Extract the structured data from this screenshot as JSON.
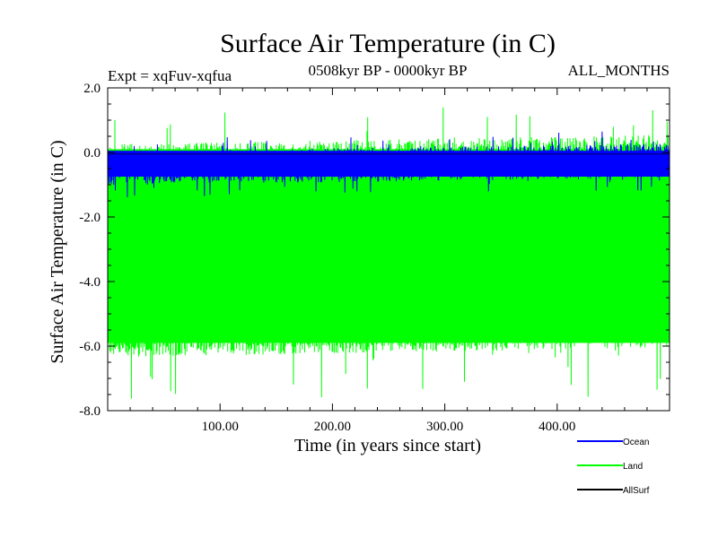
{
  "chart_data": {
    "type": "line",
    "title": "Surface Air Temperature (in C)",
    "subtitle": "0508kyr BP - 0000kyr BP",
    "expt_label": "Expt = xqFuv-xqfua",
    "months_label": "ALL_MONTHS",
    "xlabel": "Time (in years since start)",
    "ylabel": "Surface Air Temperature (in C)",
    "xlim": [
      0,
      500
    ],
    "ylim": [
      -8.0,
      2.0
    ],
    "xticks": [
      100,
      200,
      300,
      400
    ],
    "xtick_labels": [
      "100.00",
      "200.00",
      "300.00",
      "400.00"
    ],
    "yticks": [
      2.0,
      0.0,
      -2.0,
      -4.0,
      -6.0,
      -8.0
    ],
    "ytick_labels": [
      "2.0",
      "0.0",
      "-2.0",
      "-4.0",
      "-6.0",
      "-8.0"
    ],
    "grid": false,
    "legend_position": "bottom-right",
    "series": [
      {
        "name": "Land",
        "color": "#00ff00",
        "mean": -3.2,
        "low_envelope": -6.2,
        "high_envelope": 0.4,
        "min": -7.7,
        "max": 1.4
      },
      {
        "name": "Ocean",
        "color": "#0000ff",
        "mean": -0.35,
        "low_envelope": -0.9,
        "high_envelope": 0.15,
        "min": -1.3,
        "max": 0.55
      },
      {
        "name": "AllSurf",
        "color": "#000000",
        "value": -0.05
      }
    ],
    "legend": [
      {
        "name": "Ocean",
        "color": "#0000ff"
      },
      {
        "name": "Land",
        "color": "#00ff00"
      },
      {
        "name": "AllSurf",
        "color": "#000000"
      }
    ]
  }
}
